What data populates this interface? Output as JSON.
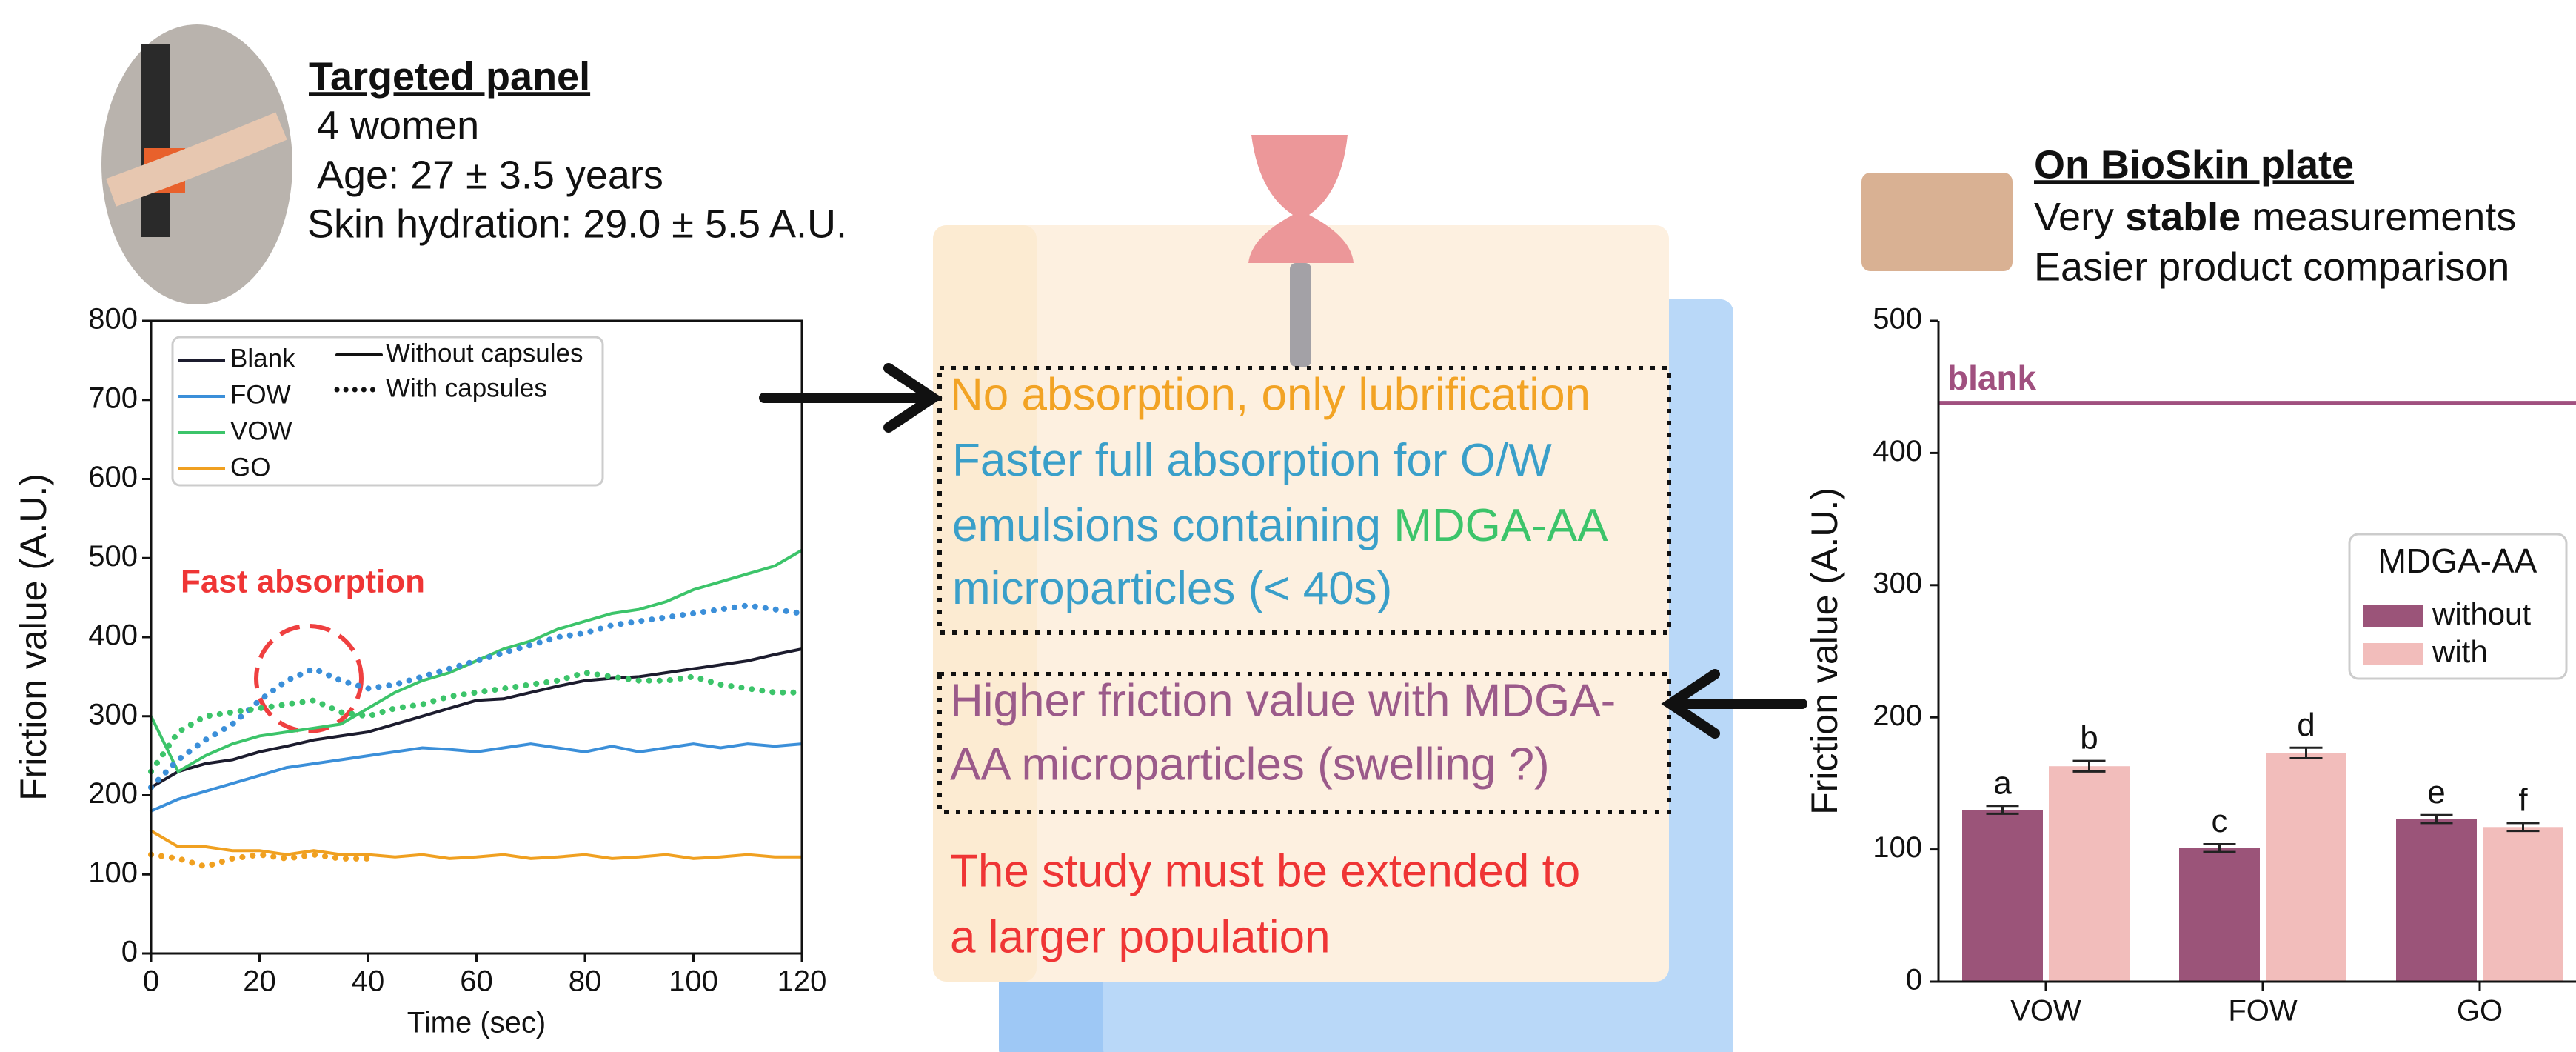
{
  "panel": {
    "title": "Targeted panel",
    "lines": [
      "4 women",
      "Age: 27 ± 3.5 years",
      "Skin hydration: 29.0 ± 5.5 A.U."
    ]
  },
  "plate": {
    "title": "On BioSkin plate",
    "line1": [
      "Very ",
      "stable",
      " measurements"
    ],
    "line2": "Easier product comparison"
  },
  "notes": {
    "lubrication": "No absorption, only lubrification",
    "absorption": [
      [
        "Faster full absorption for O/W"
      ],
      [
        "emulsions containing ",
        "MDGA-AA"
      ],
      [
        "microparticles (< 40s)"
      ]
    ],
    "friction": [
      "Higher friction value with MDGA-",
      "AA microparticles (swelling ?)"
    ],
    "conclusion": [
      "The study must be extended to",
      "a larger population"
    ]
  },
  "chart_data": [
    {
      "type": "line",
      "xlabel": "Time (sec)",
      "ylabel": "Friction value (A.U.)",
      "annotation": "Fast absorption",
      "xlim": [
        0,
        120
      ],
      "ylim": [
        0,
        800
      ],
      "xticks": [
        0,
        20,
        40,
        60,
        80,
        100,
        120
      ],
      "yticks": [
        0,
        100,
        200,
        300,
        400,
        500,
        600,
        700,
        800
      ],
      "x": [
        0,
        5,
        10,
        15,
        20,
        25,
        30,
        35,
        40,
        45,
        50,
        55,
        60,
        65,
        70,
        75,
        80,
        85,
        90,
        95,
        100,
        105,
        110,
        115,
        120
      ],
      "style_legend": [
        {
          "label": "Without capsules",
          "dash": "solid"
        },
        {
          "label": "With capsules",
          "dash": "dotted"
        }
      ],
      "series": [
        {
          "name": "Blank",
          "color": "#1c1c2e",
          "dash": "solid",
          "values": [
            210,
            230,
            240,
            245,
            255,
            262,
            270,
            275,
            280,
            290,
            300,
            310,
            320,
            322,
            330,
            338,
            345,
            348,
            350,
            355,
            360,
            365,
            370,
            378,
            385
          ]
        },
        {
          "name": "FOW",
          "color": "#3b8fd9",
          "dash": "solid",
          "values": [
            180,
            195,
            205,
            215,
            225,
            235,
            240,
            245,
            250,
            255,
            260,
            258,
            255,
            260,
            265,
            260,
            255,
            262,
            255,
            260,
            265,
            260,
            265,
            262,
            265
          ]
        },
        {
          "name": "VOW",
          "color": "#3cc46a",
          "dash": "solid",
          "values": [
            300,
            230,
            250,
            265,
            275,
            280,
            285,
            290,
            310,
            330,
            345,
            355,
            370,
            385,
            395,
            410,
            420,
            430,
            435,
            445,
            460,
            470,
            480,
            490,
            510
          ]
        },
        {
          "name": "GO",
          "color": "#f0a020",
          "dash": "solid",
          "values": [
            155,
            135,
            135,
            130,
            130,
            125,
            130,
            125,
            125,
            122,
            125,
            120,
            122,
            125,
            120,
            122,
            125,
            120,
            122,
            125,
            120,
            122,
            125,
            122,
            122
          ]
        },
        {
          "name": "FOW",
          "color": "#3b8fd9",
          "dash": "dotted",
          "values": [
            210,
            245,
            270,
            290,
            320,
            345,
            360,
            345,
            335,
            340,
            350,
            360,
            370,
            380,
            390,
            400,
            405,
            415,
            420,
            425,
            430,
            435,
            440,
            435,
            430
          ]
        },
        {
          "name": "VOW",
          "color": "#3cc46a",
          "dash": "dotted",
          "values": [
            230,
            280,
            300,
            305,
            310,
            315,
            320,
            305,
            300,
            310,
            315,
            325,
            330,
            335,
            340,
            345,
            355,
            350,
            345,
            345,
            350,
            340,
            335,
            330,
            330
          ]
        },
        {
          "name": "GO",
          "color": "#f0a020",
          "dash": "dotted",
          "values": [
            125,
            120,
            110,
            120,
            125,
            120,
            125,
            120,
            120,
            null,
            null,
            null,
            null,
            null,
            null,
            null,
            null,
            null,
            null,
            null,
            null,
            null,
            null,
            null,
            null
          ]
        }
      ]
    },
    {
      "type": "bar",
      "ylabel": "Friction value (A.U.)",
      "categories": [
        "VOW",
        "FOW",
        "GO"
      ],
      "ylim": [
        0,
        500
      ],
      "yticks": [
        0,
        100,
        200,
        300,
        400,
        500
      ],
      "legend_title": "MDGA-AA",
      "reference": {
        "label": "blank",
        "value": 438,
        "color": "#a0507f"
      },
      "series": [
        {
          "name": "without",
          "color": "#9b5479",
          "values": [
            130,
            101,
            123
          ],
          "errors": [
            3,
            3,
            3
          ],
          "labels": [
            "a",
            "c",
            "e"
          ]
        },
        {
          "name": "with",
          "color": "#f2bdbb",
          "values": [
            163,
            173,
            117
          ],
          "errors": [
            4,
            4,
            3
          ],
          "labels": [
            "b",
            "d",
            "f"
          ]
        }
      ]
    }
  ]
}
